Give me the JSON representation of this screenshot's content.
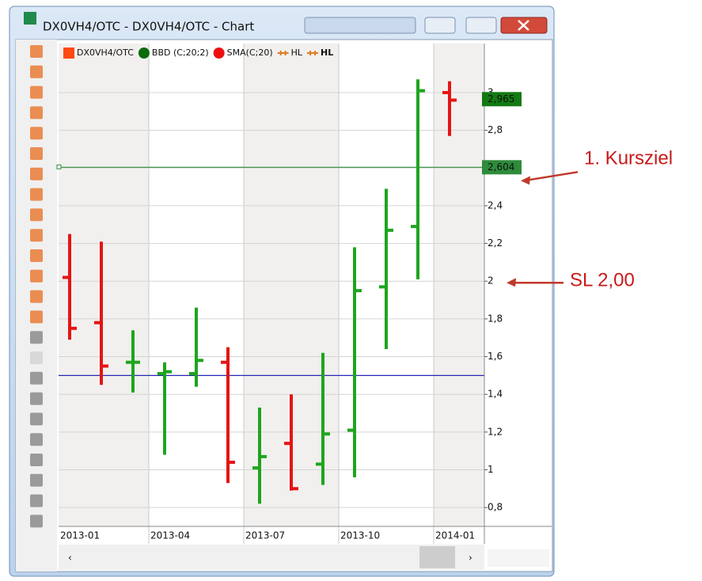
{
  "window": {
    "title": "DX0VH4/OTC - DX0VH4/OTC - Chart"
  },
  "chart_data": {
    "type": "ohlc",
    "legend": [
      "DX0VH4/OTC",
      "BBD (C;20;2)",
      "SMA(C;20)",
      "HL",
      "HL"
    ],
    "categories": [
      "2013-01",
      null,
      null,
      "2013-04",
      null,
      null,
      "2013-07",
      null,
      null,
      "2013-10",
      null,
      null,
      "2014-01"
    ],
    "open": [
      2.02,
      1.78,
      1.57,
      1.51,
      1.51,
      1.57,
      1.01,
      1.14,
      1.03,
      1.21,
      1.97,
      2.29,
      3.0
    ],
    "high": [
      2.25,
      2.21,
      1.74,
      1.57,
      1.86,
      1.65,
      1.33,
      1.4,
      1.62,
      2.18,
      2.49,
      3.07,
      3.06
    ],
    "low": [
      1.69,
      1.45,
      1.41,
      1.08,
      1.44,
      0.93,
      0.82,
      0.89,
      0.92,
      0.96,
      1.64,
      2.01,
      2.77
    ],
    "close": [
      1.75,
      1.55,
      1.57,
      1.52,
      1.58,
      1.04,
      1.07,
      0.9,
      1.19,
      1.95,
      2.27,
      3.01,
      2.96
    ],
    "up_color": "#1ea51e",
    "down_color": "#e51414",
    "ylim": [
      0.7,
      3.26
    ],
    "yticks": [
      {
        "value": 0.8,
        "label": "0,8"
      },
      1,
      {
        "value": 1.2,
        "label": "1,2"
      },
      {
        "value": 1.4,
        "label": "1,4"
      },
      {
        "value": 1.6,
        "label": "1,6"
      },
      {
        "value": 1.8,
        "label": "1,8"
      },
      2,
      {
        "value": 2.2,
        "label": "2,2"
      },
      {
        "value": 2.4,
        "label": "2,4"
      },
      {
        "value": 2.6,
        "label": "2,6"
      },
      {
        "value": 2.8,
        "label": "2,8"
      },
      3
    ],
    "levels": [
      {
        "value": 2.604,
        "label": "2,604",
        "color": "#2e8b3c"
      },
      {
        "value": 1.5,
        "color": "#2626b8"
      }
    ],
    "last_price": {
      "value": 2.965,
      "label": "2,965"
    },
    "annotations": [
      {
        "text": "1. Kursziel",
        "value": 2.604
      },
      {
        "text": "SL 2,00",
        "value": 2
      }
    ]
  }
}
